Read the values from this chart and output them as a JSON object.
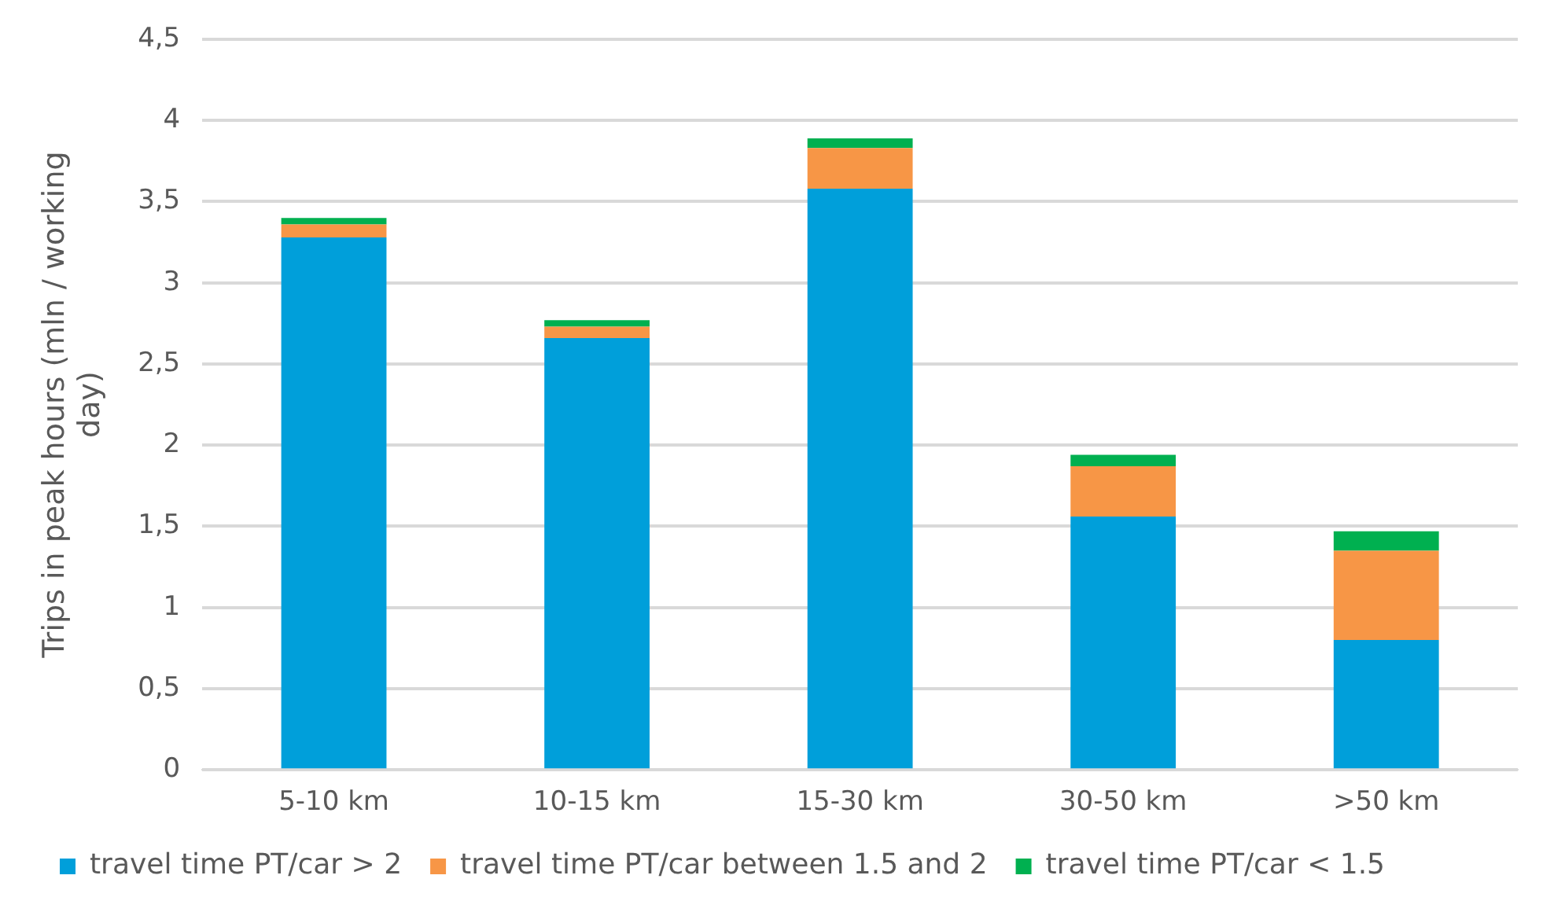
{
  "chart_data": {
    "type": "bar",
    "stacked": true,
    "ylabel": "Trips in peak hours (mln / working day)",
    "categories": [
      "5-10 km",
      "10-15 km",
      "15-30 km",
      "30-50 km",
      ">50 km"
    ],
    "series": [
      {
        "name": "travel time PT/car > 2",
        "color": "#009fda",
        "values": [
          3.28,
          2.66,
          3.58,
          1.56,
          0.8
        ]
      },
      {
        "name": "travel time PT/car between 1.5 and 2",
        "color": "#f79646",
        "values": [
          0.08,
          0.07,
          0.25,
          0.31,
          0.55
        ]
      },
      {
        "name": "travel time PT/car < 1.5",
        "color": "#00b050",
        "values": [
          0.04,
          0.04,
          0.06,
          0.07,
          0.12
        ]
      }
    ],
    "ylim": [
      0,
      4.5
    ],
    "yticks": [
      0,
      {
        "value": 0.5,
        "label": "0,5"
      },
      1,
      {
        "value": 1.5,
        "label": "1,5"
      },
      2,
      {
        "value": 2.5,
        "label": "2,5"
      },
      3,
      {
        "value": 3.5,
        "label": "3,5"
      },
      4,
      {
        "value": 4.5,
        "label": "4,5"
      }
    ],
    "grid": "y",
    "legend": "bottom"
  }
}
